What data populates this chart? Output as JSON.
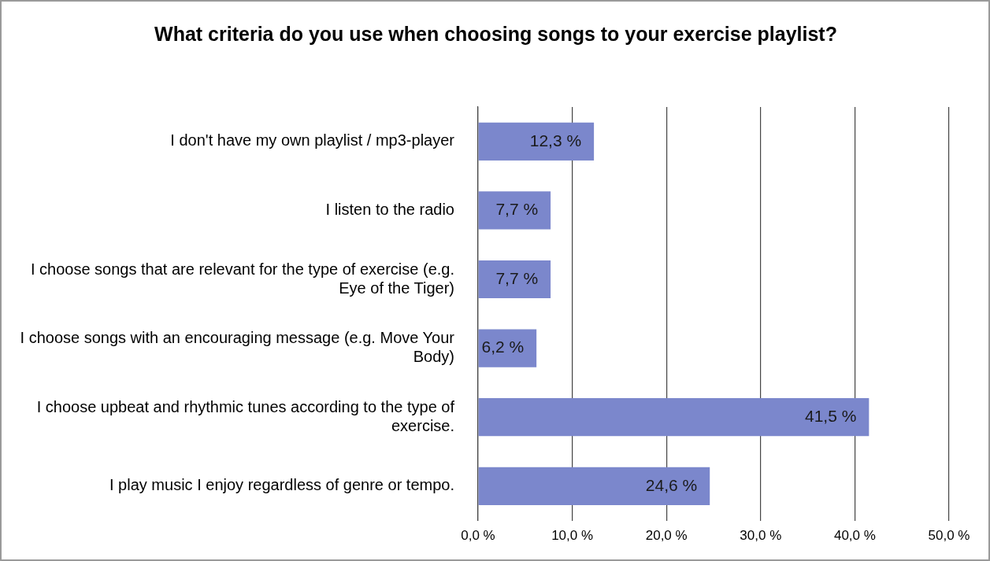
{
  "chart_data": {
    "type": "bar",
    "orientation": "horizontal",
    "title": "What criteria do you use when choosing songs to your exercise playlist?",
    "categories": [
      "I don't have my own playlist / mp3-player",
      "I listen to the radio",
      "I choose songs that are relevant for the type of exercise (e.g. Eye of the Tiger)",
      "I choose songs with an encouraging message (e.g. Move Your Body)",
      "I choose upbeat and rhythmic tunes according to the type of exercise.",
      "I play music I enjoy regardless of genre or tempo."
    ],
    "values": [
      12.3,
      7.7,
      7.7,
      6.2,
      41.5,
      24.6
    ],
    "value_labels": [
      "12,3 %",
      "7,7 %",
      "7,7 %",
      "6,2 %",
      "41,5 %",
      "24,6 %"
    ],
    "color": "#7b87cc",
    "xlim": [
      0,
      50
    ],
    "xticks": [
      {
        "value": 0,
        "label": "0,0 %"
      },
      {
        "value": 10,
        "label": "10,0 %"
      },
      {
        "value": 20,
        "label": "20,0 %"
      },
      {
        "value": 30,
        "label": "30,0 %"
      },
      {
        "value": 40,
        "label": "40,0 %"
      },
      {
        "value": 50,
        "label": "50,0 %"
      }
    ],
    "grid": "x",
    "legend": false
  }
}
